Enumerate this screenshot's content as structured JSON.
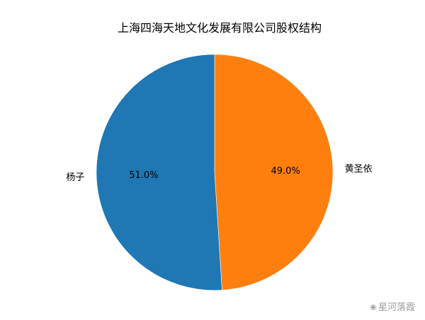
{
  "chart_data": {
    "type": "pie",
    "title": "上海四海天地文化发展有限公司股权结构",
    "slices": [
      {
        "label": "黄圣依",
        "value": 49.0,
        "pct_label": "49.0%",
        "color": "#ff7f0e"
      },
      {
        "label": "杨子",
        "value": 51.0,
        "pct_label": "51.0%",
        "color": "#1f77b4"
      }
    ],
    "start_angle_deg": 90,
    "direction": "clockwise",
    "legend": "none"
  },
  "watermark": {
    "text": "星河落霞",
    "icon": "wechat-icon"
  }
}
